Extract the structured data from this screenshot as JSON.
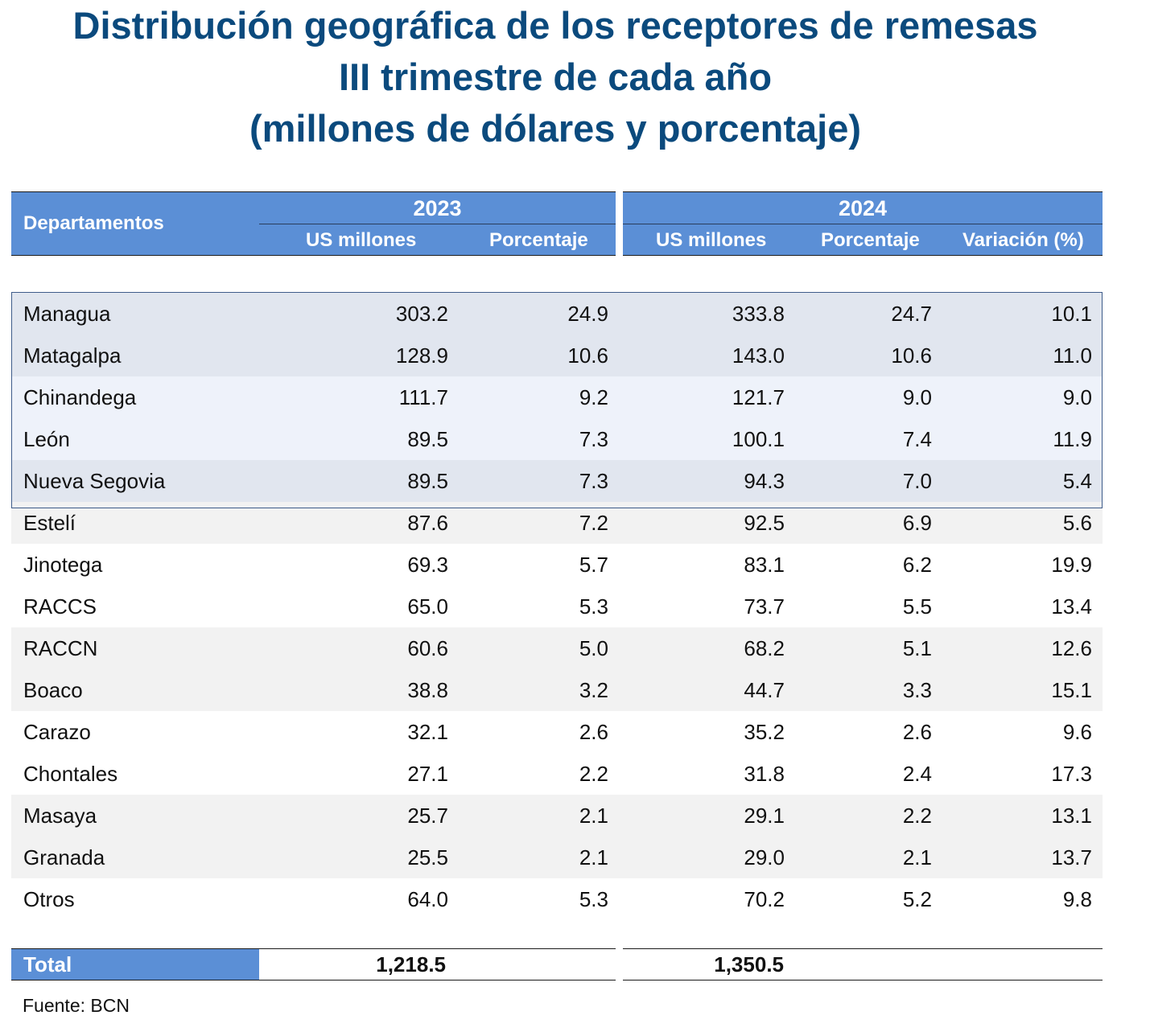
{
  "title": {
    "line1": "Distribución geográfica de los receptores de remesas",
    "line2": "III trimestre de cada año",
    "line3": "(millones de dólares y porcentaje)"
  },
  "header": {
    "departamentos": "Departamentos",
    "year1": "2023",
    "year2": "2024",
    "col_us": "US millones",
    "col_pct": "Porcentaje",
    "col_var": "Variación (%)"
  },
  "colors": {
    "title": "#0b4a7d",
    "header_bg": "#5b8fd6",
    "row_dark": "#e1e6ef",
    "row_light": "#eef2fa",
    "row_gray": "#f2f2f2",
    "row_white": "#ffffff"
  },
  "rows": [
    {
      "dep": "Managua",
      "us2023": "303.2",
      "pct2023": "24.9",
      "us2024": "333.8",
      "pct2024": "24.7",
      "var": "10.1"
    },
    {
      "dep": "Matagalpa",
      "us2023": "128.9",
      "pct2023": "10.6",
      "us2024": "143.0",
      "pct2024": "10.6",
      "var": "11.0"
    },
    {
      "dep": "Chinandega",
      "us2023": "111.7",
      "pct2023": "9.2",
      "us2024": "121.7",
      "pct2024": "9.0",
      "var": "9.0"
    },
    {
      "dep": "León",
      "us2023": "89.5",
      "pct2023": "7.3",
      "us2024": "100.1",
      "pct2024": "7.4",
      "var": "11.9"
    },
    {
      "dep": "Nueva Segovia",
      "us2023": "89.5",
      "pct2023": "7.3",
      "us2024": "94.3",
      "pct2024": "7.0",
      "var": "5.4"
    },
    {
      "dep": "Estelí",
      "us2023": "87.6",
      "pct2023": "7.2",
      "us2024": "92.5",
      "pct2024": "6.9",
      "var": "5.6"
    },
    {
      "dep": "Jinotega",
      "us2023": "69.3",
      "pct2023": "5.7",
      "us2024": "83.1",
      "pct2024": "6.2",
      "var": "19.9"
    },
    {
      "dep": "RACCS",
      "us2023": "65.0",
      "pct2023": "5.3",
      "us2024": "73.7",
      "pct2024": "5.5",
      "var": "13.4"
    },
    {
      "dep": "RACCN",
      "us2023": "60.6",
      "pct2023": "5.0",
      "us2024": "68.2",
      "pct2024": "5.1",
      "var": "12.6"
    },
    {
      "dep": "Boaco",
      "us2023": "38.8",
      "pct2023": "3.2",
      "us2024": "44.7",
      "pct2024": "3.3",
      "var": "15.1"
    },
    {
      "dep": "Carazo",
      "us2023": "32.1",
      "pct2023": "2.6",
      "us2024": "35.2",
      "pct2024": "2.6",
      "var": "9.6"
    },
    {
      "dep": "Chontales",
      "us2023": "27.1",
      "pct2023": "2.2",
      "us2024": "31.8",
      "pct2024": "2.4",
      "var": "17.3"
    },
    {
      "dep": "Masaya",
      "us2023": "25.7",
      "pct2023": "2.1",
      "us2024": "29.1",
      "pct2024": "2.2",
      "var": "13.1"
    },
    {
      "dep": "Granada",
      "us2023": "25.5",
      "pct2023": "2.1",
      "us2024": "29.0",
      "pct2024": "2.1",
      "var": "13.7"
    },
    {
      "dep": "Otros",
      "us2023": "64.0",
      "pct2023": "5.3",
      "us2024": "70.2",
      "pct2024": "5.2",
      "var": "9.8"
    }
  ],
  "row_bands": [
    "dark",
    "dark",
    "light",
    "light",
    "dark",
    "gray",
    "white",
    "white",
    "gray",
    "gray",
    "white",
    "white",
    "gray",
    "gray",
    "white"
  ],
  "total": {
    "label": "Total",
    "us2023": "1,218.5",
    "us2024": "1,350.5"
  },
  "source": "Fuente: BCN"
}
